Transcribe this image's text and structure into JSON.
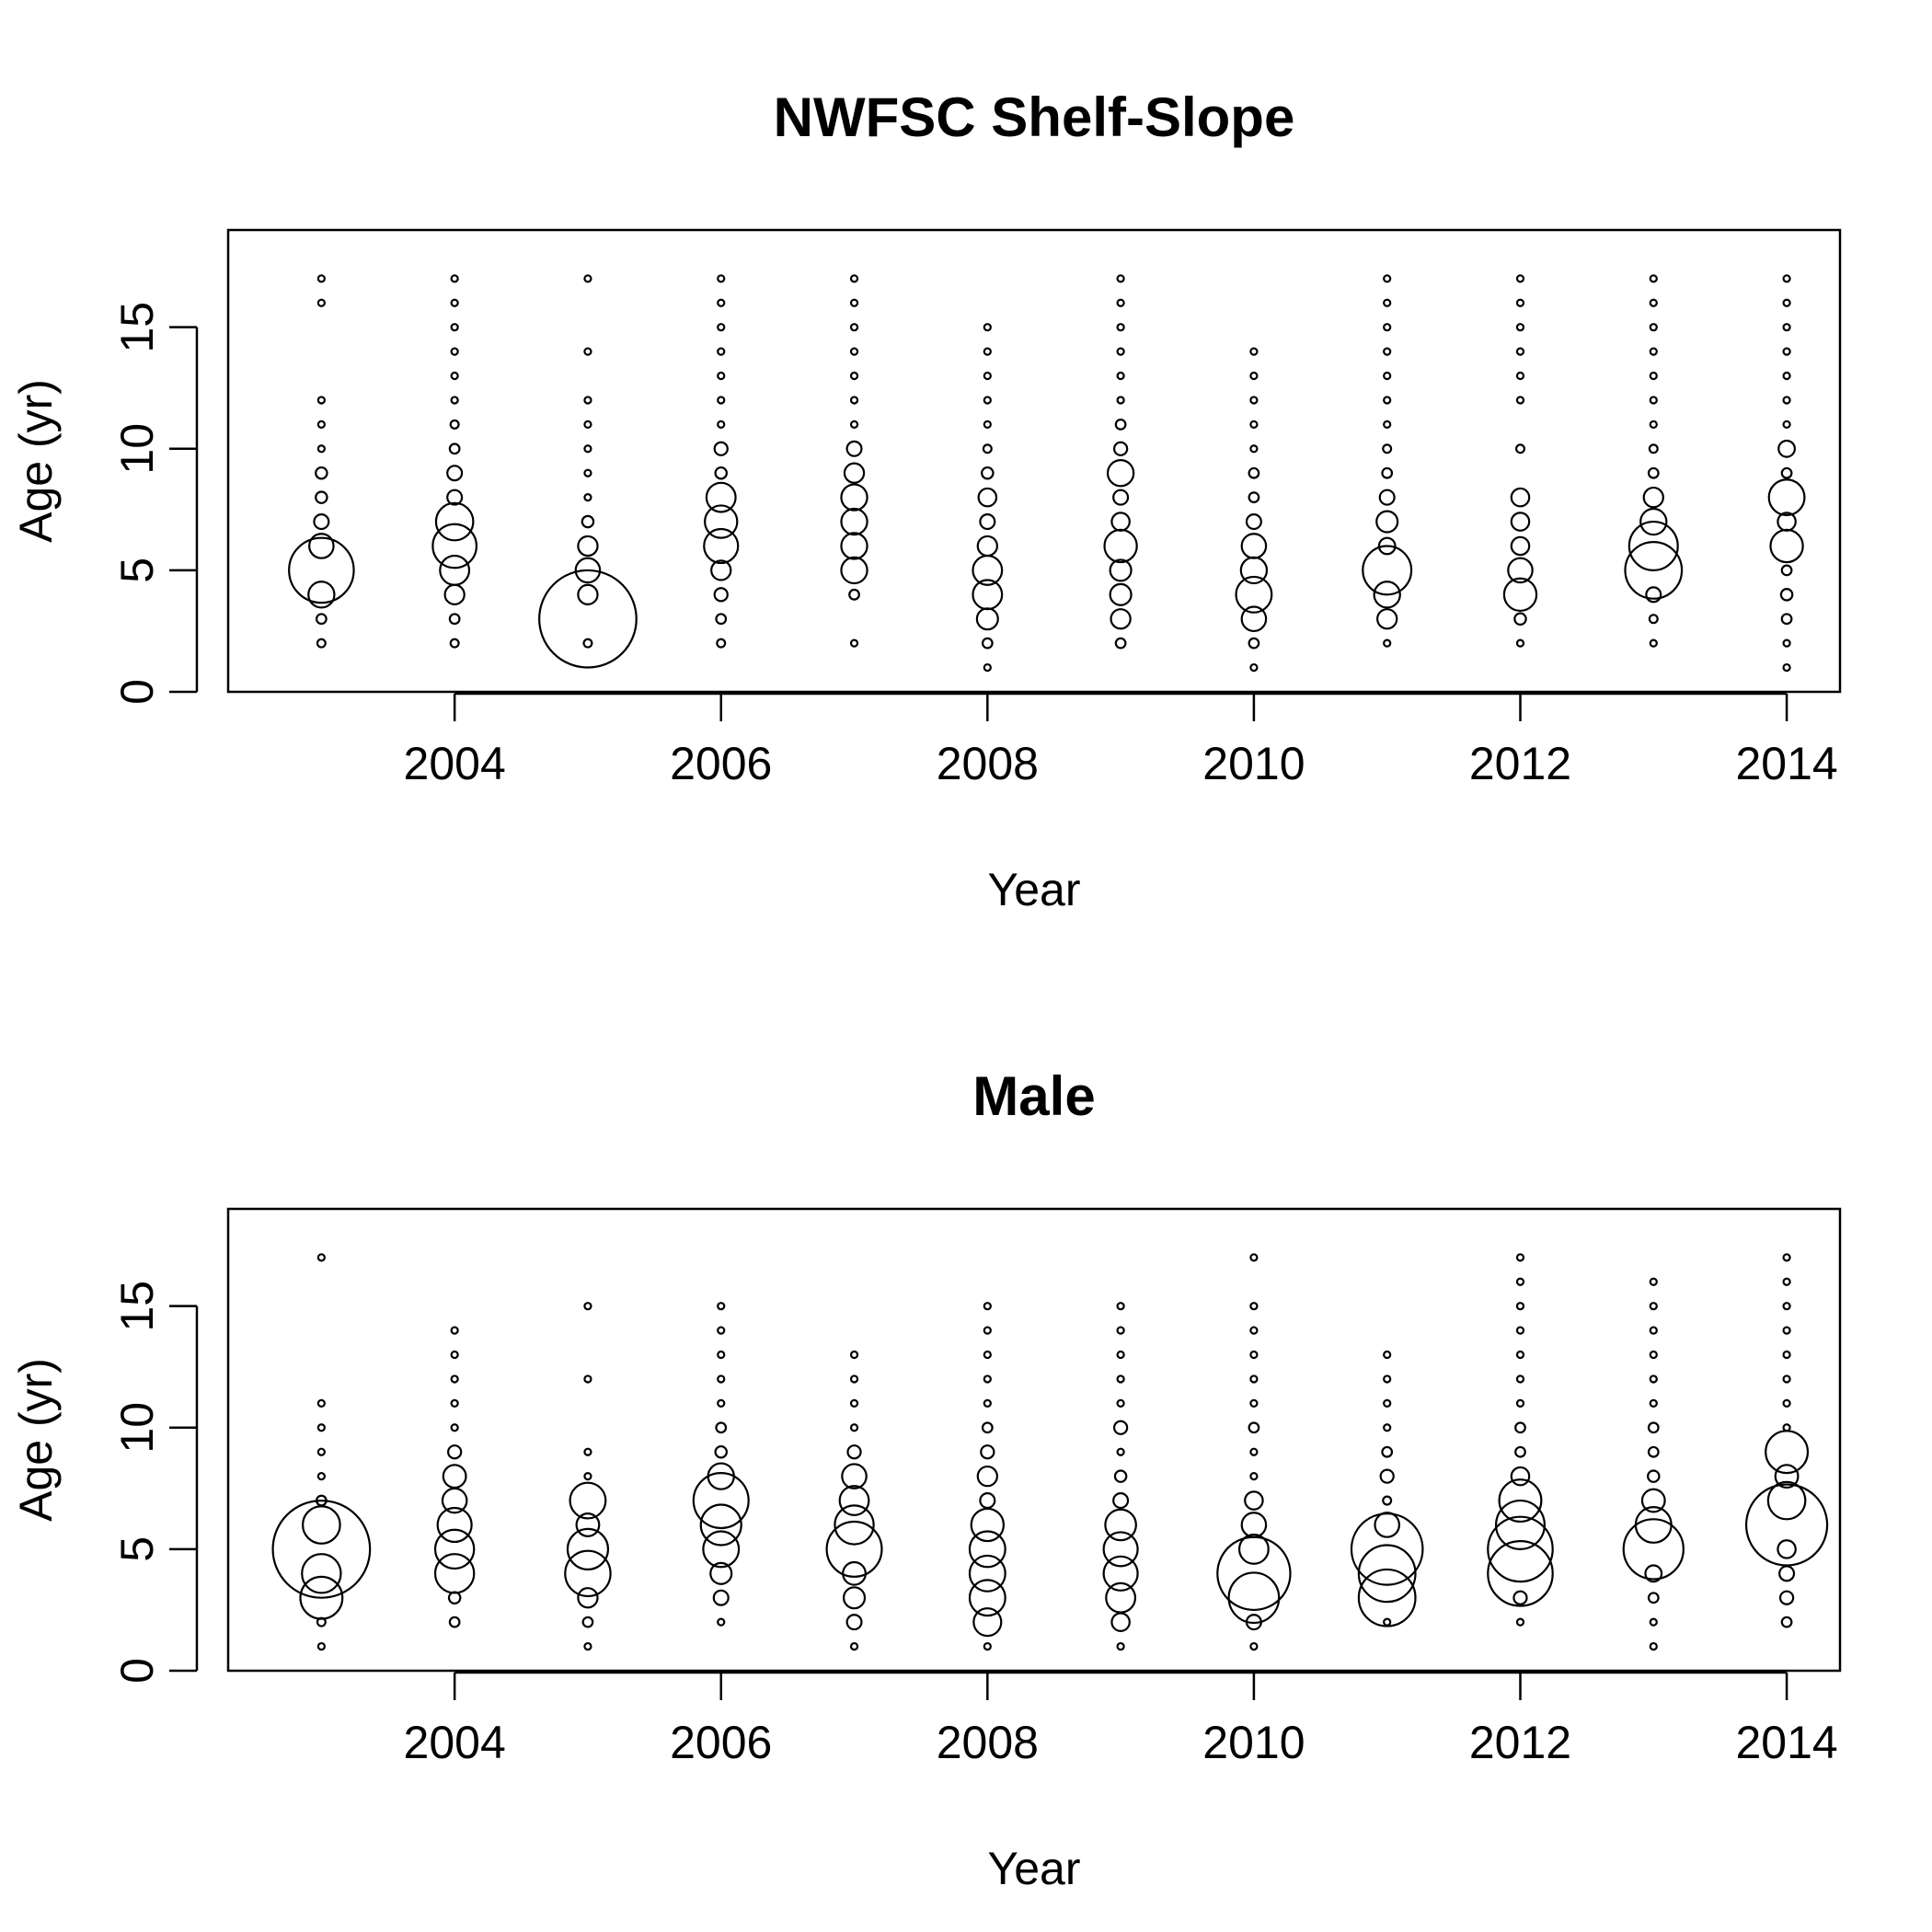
{
  "chart_data": [
    {
      "type": "scatter",
      "subtype": "bubble",
      "title": "NWFSC Shelf-Slope",
      "xlabel": "Year",
      "ylabel": "Age (yr)",
      "xlim": [
        2002.3,
        2014.4
      ],
      "ylim": [
        0,
        19
      ],
      "xticks": [
        2004,
        2006,
        2008,
        2010,
        2012,
        2014
      ],
      "yticks": [
        0,
        5,
        10,
        15
      ],
      "bubble_size_unit": "relative",
      "points": [
        {
          "year": 2003,
          "ages": [
            2,
            3,
            4,
            5,
            6,
            7,
            8,
            9,
            10,
            11,
            12,
            16,
            17
          ],
          "sizes": [
            0.5,
            0.6,
            1.6,
            4.0,
            1.5,
            0.9,
            0.7,
            0.7,
            0.4,
            0.4,
            0.4,
            0.4,
            0.4
          ]
        },
        {
          "year": 2004,
          "ages": [
            2,
            3,
            4,
            5,
            6,
            7,
            8,
            9,
            10,
            11,
            12,
            13,
            14,
            15,
            16,
            17
          ],
          "sizes": [
            0.5,
            0.6,
            1.2,
            1.8,
            2.7,
            2.3,
            0.9,
            0.9,
            0.6,
            0.5,
            0.4,
            0.4,
            0.4,
            0.4,
            0.4,
            0.4
          ]
        },
        {
          "year": 2005,
          "ages": [
            2,
            3,
            4,
            5,
            6,
            7,
            8,
            9,
            10,
            11,
            12,
            14,
            17
          ],
          "sizes": [
            0.5,
            6.0,
            1.2,
            1.5,
            1.2,
            0.7,
            0.4,
            0.4,
            0.4,
            0.4,
            0.4,
            0.4,
            0.4
          ]
        },
        {
          "year": 2006,
          "ages": [
            2,
            3,
            4,
            5,
            6,
            7,
            8,
            9,
            10,
            11,
            12,
            13,
            14,
            15,
            16,
            17
          ],
          "sizes": [
            0.5,
            0.6,
            0.8,
            1.2,
            2.1,
            2.0,
            1.8,
            0.7,
            0.8,
            0.4,
            0.4,
            0.4,
            0.4,
            0.4,
            0.4,
            0.4
          ]
        },
        {
          "year": 2007,
          "ages": [
            2,
            4,
            5,
            6,
            7,
            8,
            9,
            10,
            11,
            12,
            13,
            14,
            15,
            16,
            17
          ],
          "sizes": [
            0.4,
            0.6,
            1.6,
            1.6,
            1.6,
            1.6,
            1.2,
            0.9,
            0.4,
            0.4,
            0.4,
            0.4,
            0.4,
            0.4,
            0.4
          ]
        },
        {
          "year": 2008,
          "ages": [
            1,
            2,
            3,
            4,
            5,
            6,
            7,
            8,
            9,
            10,
            11,
            12,
            13,
            14,
            15
          ],
          "sizes": [
            0.4,
            0.6,
            1.3,
            1.8,
            1.8,
            1.2,
            0.9,
            1.1,
            0.7,
            0.5,
            0.4,
            0.4,
            0.4,
            0.4,
            0.4
          ]
        },
        {
          "year": 2009,
          "ages": [
            2,
            3,
            4,
            5,
            6,
            7,
            8,
            9,
            10,
            11,
            12,
            13,
            14,
            15,
            16,
            17
          ],
          "sizes": [
            0.6,
            1.2,
            1.3,
            1.3,
            2.0,
            1.1,
            0.9,
            1.6,
            0.8,
            0.6,
            0.4,
            0.4,
            0.4,
            0.4,
            0.4,
            0.4
          ]
        },
        {
          "year": 2010,
          "ages": [
            1,
            2,
            3,
            4,
            5,
            6,
            7,
            8,
            9,
            10,
            11,
            12,
            13,
            14
          ],
          "sizes": [
            0.4,
            0.6,
            1.5,
            2.2,
            1.6,
            1.5,
            0.9,
            0.6,
            0.6,
            0.4,
            0.4,
            0.4,
            0.4,
            0.4
          ]
        },
        {
          "year": 2011,
          "ages": [
            2,
            3,
            4,
            5,
            6,
            7,
            8,
            9,
            10,
            11,
            12,
            13,
            14,
            15,
            16,
            17
          ],
          "sizes": [
            0.4,
            1.2,
            1.6,
            3.0,
            1.0,
            1.3,
            0.9,
            0.6,
            0.5,
            0.4,
            0.4,
            0.4,
            0.4,
            0.4,
            0.4,
            0.4
          ]
        },
        {
          "year": 2012,
          "ages": [
            2,
            3,
            4,
            5,
            6,
            7,
            8,
            10,
            12,
            13,
            14,
            15,
            16,
            17
          ],
          "sizes": [
            0.4,
            0.7,
            2.0,
            1.5,
            1.1,
            1.1,
            1.1,
            0.5,
            0.4,
            0.4,
            0.4,
            0.4,
            0.4,
            0.4
          ]
        },
        {
          "year": 2013,
          "ages": [
            2,
            3,
            4,
            5,
            6,
            7,
            8,
            9,
            10,
            11,
            12,
            13,
            14,
            15,
            16,
            17
          ],
          "sizes": [
            0.4,
            0.5,
            0.9,
            3.5,
            3.0,
            1.6,
            1.2,
            0.6,
            0.5,
            0.4,
            0.4,
            0.4,
            0.4,
            0.4,
            0.4,
            0.4
          ]
        },
        {
          "year": 2014,
          "ages": [
            1,
            2,
            3,
            4,
            5,
            6,
            7,
            8,
            9,
            10,
            11,
            12,
            13,
            14,
            15,
            16,
            17
          ],
          "sizes": [
            0.4,
            0.4,
            0.6,
            0.7,
            0.6,
            2.0,
            1.1,
            2.2,
            0.6,
            1.0,
            0.4,
            0.4,
            0.4,
            0.4,
            0.4,
            0.4,
            0.4
          ]
        }
      ]
    },
    {
      "type": "scatter",
      "subtype": "bubble",
      "title": "Male",
      "xlabel": "Year",
      "ylabel": "Age (yr)",
      "xlim": [
        2002.3,
        2014.4
      ],
      "ylim": [
        0,
        19
      ],
      "xticks": [
        2004,
        2006,
        2008,
        2010,
        2012,
        2014
      ],
      "yticks": [
        0,
        5,
        10,
        15
      ],
      "bubble_size_unit": "relative",
      "points": [
        {
          "year": 2003,
          "ages": [
            1,
            2,
            3,
            4,
            5,
            6,
            7,
            8,
            9,
            10,
            11,
            17
          ],
          "sizes": [
            0.4,
            0.5,
            2.6,
            2.4,
            6.0,
            2.3,
            0.6,
            0.4,
            0.4,
            0.4,
            0.4,
            0.4
          ]
        },
        {
          "year": 2004,
          "ages": [
            2,
            3,
            4,
            5,
            6,
            7,
            8,
            9,
            10,
            11,
            12,
            13,
            14
          ],
          "sizes": [
            0.6,
            0.7,
            2.4,
            2.4,
            2.1,
            1.5,
            1.4,
            0.8,
            0.4,
            0.4,
            0.4,
            0.4,
            0.4
          ]
        },
        {
          "year": 2005,
          "ages": [
            1,
            2,
            3,
            4,
            5,
            6,
            7,
            8,
            9,
            12,
            15
          ],
          "sizes": [
            0.4,
            0.6,
            1.2,
            2.8,
            2.5,
            1.4,
            2.2,
            0.4,
            0.4,
            0.4,
            0.4
          ]
        },
        {
          "year": 2006,
          "ages": [
            2,
            3,
            4,
            5,
            6,
            7,
            8,
            9,
            10,
            11,
            12,
            13,
            14,
            15
          ],
          "sizes": [
            0.4,
            0.9,
            1.3,
            2.2,
            2.5,
            3.4,
            1.6,
            0.7,
            0.6,
            0.4,
            0.4,
            0.4,
            0.4,
            0.4
          ]
        },
        {
          "year": 2007,
          "ages": [
            1,
            2,
            3,
            4,
            5,
            6,
            7,
            8,
            9,
            10,
            11,
            12,
            13
          ],
          "sizes": [
            0.4,
            0.9,
            1.3,
            1.4,
            3.4,
            2.4,
            1.8,
            1.5,
            0.8,
            0.4,
            0.4,
            0.4,
            0.4
          ]
        },
        {
          "year": 2008,
          "ages": [
            1,
            2,
            3,
            4,
            5,
            6,
            7,
            8,
            9,
            10,
            11,
            12,
            13,
            14,
            15
          ],
          "sizes": [
            0.4,
            1.7,
            2.2,
            2.2,
            2.2,
            2.0,
            0.9,
            1.2,
            0.8,
            0.6,
            0.4,
            0.4,
            0.4,
            0.4,
            0.4
          ]
        },
        {
          "year": 2009,
          "ages": [
            1,
            2,
            3,
            4,
            5,
            6,
            7,
            8,
            9,
            10,
            11,
            12,
            13,
            14,
            15
          ],
          "sizes": [
            0.4,
            1.1,
            1.8,
            2.1,
            2.1,
            1.9,
            0.9,
            0.7,
            0.4,
            0.8,
            0.4,
            0.4,
            0.4,
            0.4,
            0.4
          ]
        },
        {
          "year": 2010,
          "ages": [
            1,
            2,
            3,
            4,
            5,
            6,
            7,
            8,
            9,
            10,
            11,
            12,
            13,
            14,
            15,
            17
          ],
          "sizes": [
            0.4,
            0.9,
            3.1,
            4.5,
            1.8,
            1.5,
            1.1,
            0.4,
            0.4,
            0.6,
            0.4,
            0.4,
            0.4,
            0.4,
            0.4,
            0.4
          ]
        },
        {
          "year": 2011,
          "ages": [
            2,
            3,
            4,
            5,
            6,
            7,
            8,
            9,
            10,
            11,
            12,
            13
          ],
          "sizes": [
            0.4,
            3.5,
            3.5,
            4.4,
            1.5,
            0.5,
            0.8,
            0.6,
            0.4,
            0.4,
            0.4,
            0.4
          ]
        },
        {
          "year": 2012,
          "ages": [
            2,
            3,
            4,
            5,
            6,
            7,
            8,
            9,
            10,
            11,
            12,
            13,
            14,
            15,
            16,
            17
          ],
          "sizes": [
            0.4,
            0.8,
            4.0,
            4.0,
            3.0,
            2.6,
            1.1,
            0.6,
            0.6,
            0.4,
            0.4,
            0.4,
            0.4,
            0.4,
            0.4,
            0.4
          ]
        },
        {
          "year": 2013,
          "ages": [
            1,
            2,
            3,
            4,
            5,
            6,
            7,
            8,
            9,
            10,
            11,
            12,
            13,
            14,
            15,
            16
          ],
          "sizes": [
            0.4,
            0.4,
            0.6,
            1.0,
            3.7,
            2.2,
            1.4,
            0.7,
            0.6,
            0.6,
            0.4,
            0.4,
            0.4,
            0.4,
            0.4,
            0.4
          ]
        },
        {
          "year": 2014,
          "ages": [
            2,
            3,
            4,
            5,
            6,
            7,
            8,
            9,
            10,
            11,
            12,
            13,
            14,
            15,
            16,
            17
          ],
          "sizes": [
            0.6,
            0.8,
            0.9,
            1.1,
            5.0,
            2.3,
            1.4,
            2.6,
            0.4,
            0.4,
            0.4,
            0.4,
            0.4,
            0.4,
            0.4,
            0.4
          ]
        }
      ]
    }
  ]
}
